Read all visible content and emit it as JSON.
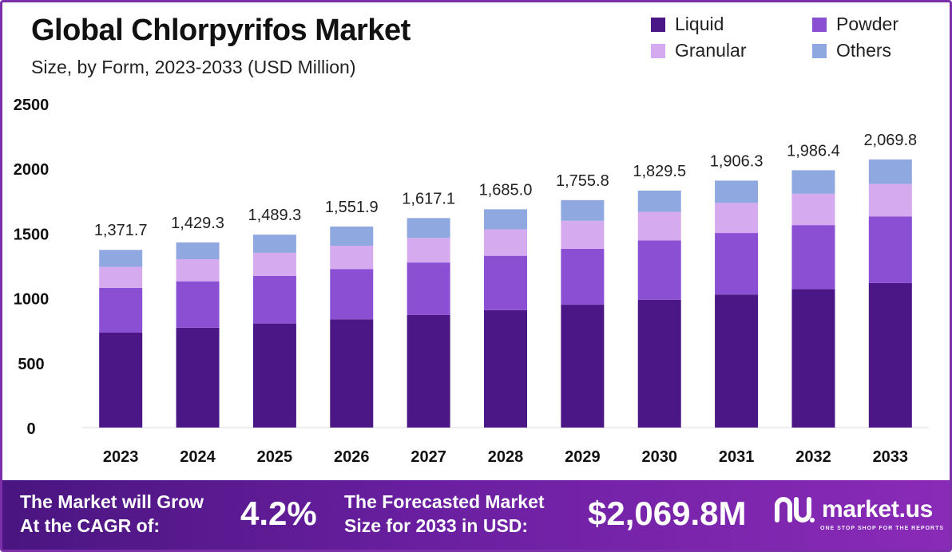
{
  "header": {
    "title": "Global Chlorpyrifos Market",
    "subtitle": "Size, by Form, 2023-2033 (USD Million)"
  },
  "legend": [
    {
      "label": "Liquid",
      "color": "#4b1786"
    },
    {
      "label": "Powder",
      "color": "#8a4fd3"
    },
    {
      "label": "Granular",
      "color": "#d6aaef"
    },
    {
      "label": "Others",
      "color": "#8fa8e0"
    }
  ],
  "chart_data": {
    "type": "bar",
    "stacked": true,
    "title": "Global Chlorpyrifos Market",
    "subtitle": "Size, by Form, 2023-2033 (USD Million)",
    "xlabel": "",
    "ylabel": "USD Million",
    "ylim": [
      0,
      2500
    ],
    "yticks": [
      0,
      500,
      1000,
      1500,
      2000,
      2500
    ],
    "grid": false,
    "legend_position": "top-right",
    "categories": [
      "2023",
      "2024",
      "2025",
      "2026",
      "2027",
      "2028",
      "2029",
      "2030",
      "2031",
      "2032",
      "2033"
    ],
    "series": [
      {
        "name": "Liquid",
        "color": "#4b1786",
        "values": [
          733,
          771,
          803,
          836,
          870,
          906,
          948,
          986,
          1027,
          1068,
          1115
        ]
      },
      {
        "name": "Powder",
        "color": "#8a4fd3",
        "values": [
          345,
          358,
          368,
          388,
          404,
          420,
          432,
          459,
          475,
          495,
          515
        ]
      },
      {
        "name": "Granular",
        "color": "#d6aaef",
        "values": [
          162,
          170,
          178,
          180,
          190,
          204,
          216,
          220,
          232,
          242,
          250
        ]
      },
      {
        "name": "Others",
        "color": "#8fa8e0",
        "values": [
          131.7,
          130.3,
          140.3,
          147.9,
          153.1,
          155.0,
          159.8,
          164.5,
          172.3,
          181.4,
          189.8
        ]
      }
    ],
    "totals": [
      1371.7,
      1429.3,
      1489.3,
      1551.9,
      1617.1,
      1685.0,
      1755.8,
      1829.5,
      1906.3,
      1986.4,
      2069.8
    ],
    "total_labels": [
      "1,371.7",
      "1,429.3",
      "1,489.3",
      "1,551.9",
      "1,617.1",
      "1,685.0",
      "1,755.8",
      "1,829.5",
      "1,906.3",
      "1,986.4",
      "2,069.8"
    ]
  },
  "footer": {
    "cagr_text_line1": "The Market will Grow",
    "cagr_text_line2": "At the CAGR of:",
    "cagr_value": "4.2%",
    "forecast_text_line1": "The Forecasted Market",
    "forecast_text_line2": "Size for 2033 in USD:",
    "forecast_value": "$2,069.8M",
    "brand_name": "market.us",
    "brand_tagline": "ONE STOP SHOP FOR THE REPORTS"
  }
}
